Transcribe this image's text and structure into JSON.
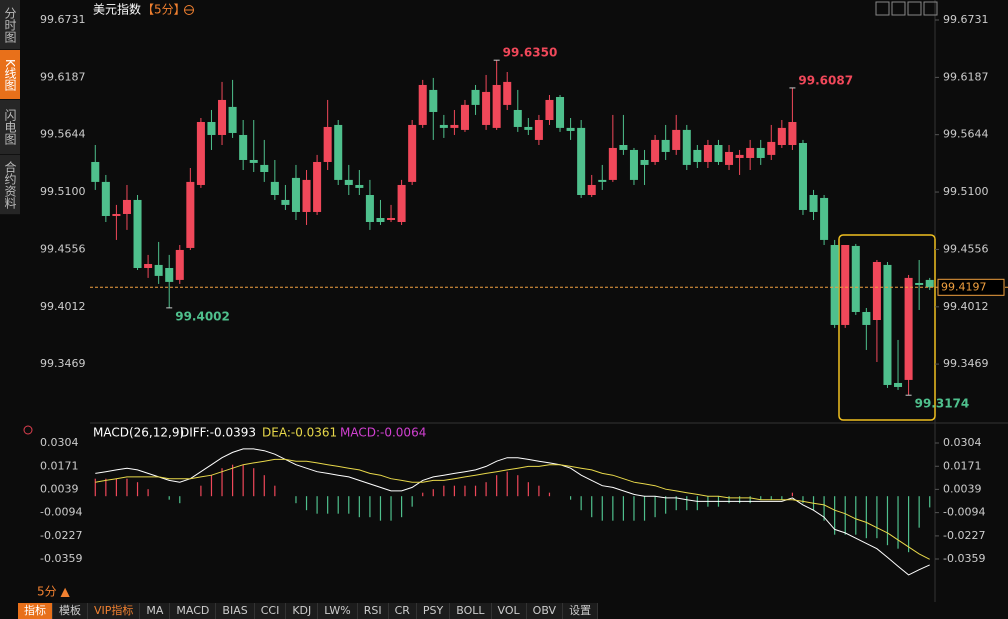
{
  "sidebar": [
    "分时图",
    "K线图",
    "闪电图",
    "合约资料"
  ],
  "toolbar": {
    "period": "5分 ▲",
    "tabs": [
      "指标",
      "模板",
      "VIP指标",
      "MA",
      "MACD",
      "BIAS",
      "CCI",
      "KDJ",
      "LW%",
      "RSI",
      "CR",
      "PSY",
      "BOLL",
      "VOL",
      "OBV",
      "设置"
    ]
  },
  "chart_data": [
    {
      "type": "candlestick",
      "title": "美元指数",
      "period": "【5分】",
      "up_color": "#f0485a",
      "down_color": "#4fc08d",
      "ylim": [
        99.2939,
        99.6731
      ],
      "yticks": [
        99.6731,
        99.6187,
        99.5644,
        {
          "value": 99.51,
          "label": "99.5100"
        },
        99.4556,
        99.4012,
        99.3469
      ],
      "current_price": 99.4197,
      "current_color": "#f0a040",
      "annotations": [
        {
          "value": 99.635,
          "label": "99.6350"
        },
        {
          "value": 99.6087
        },
        {
          "value": 99.4002
        },
        {
          "value": 99.3174
        }
      ],
      "open": [
        99.5385,
        99.5196,
        99.4873,
        99.4892,
        99.5025,
        99.438,
        99.4409,
        99.438,
        99.4267,
        99.457,
        99.5167,
        99.5764,
        99.5641,
        99.5907,
        99.5641,
        99.5404,
        99.5357,
        99.5196,
        99.5025,
        99.5234,
        99.4911,
        99.4911,
        99.5385,
        99.5736,
        99.5215,
        99.5167,
        99.5072,
        99.4854,
        99.4835,
        99.4816,
        99.5196,
        99.5736,
        99.6068,
        99.5736,
        99.5708,
        99.5689,
        99.6068,
        99.5736,
        99.5708,
        99.5926,
        99.5878,
        99.5717,
        99.5594,
        99.5783,
        99.6001,
        99.5708,
        99.5708,
        99.5072,
        99.5215,
        99.5215,
        99.5546,
        99.5499,
        99.5404,
        99.5385,
        99.5594,
        99.5499,
        99.5689,
        99.5499,
        99.5385,
        99.5546,
        99.5357,
        99.5423,
        99.5423,
        99.5518,
        99.5452,
        99.5546,
        99.5546,
        99.5565,
        99.5072,
        99.5044,
        99.4598,
        99.384,
        99.4589,
        99.3963,
        99.3887,
        99.4409,
        99.329,
        99.3319,
        99.4238,
        99.4267
      ],
      "high": [
        99.5546,
        99.5262,
        99.4978,
        99.5167,
        99.5072,
        99.4504,
        99.4627,
        99.4504,
        99.4598,
        99.5328,
        99.5802,
        99.5878,
        99.6144,
        99.6163,
        99.5783,
        99.5783,
        99.5594,
        99.5404,
        99.5167,
        99.5357,
        99.5309,
        99.5452,
        99.5973,
        99.5783,
        99.5357,
        99.5309,
        99.5215,
        99.5025,
        99.4978,
        99.5215,
        99.5783,
        99.6163,
        99.6182,
        99.5831,
        99.5878,
        99.5973,
        99.6115,
        99.621,
        99.635,
        99.6238,
        99.6068,
        99.5802,
        99.5831,
        99.602,
        99.602,
        99.5802,
        99.5783,
        99.5262,
        99.5357,
        99.5831,
        99.5831,
        99.5518,
        99.5499,
        99.5641,
        99.5736,
        99.5831,
        99.5736,
        99.5546,
        99.5594,
        99.5594,
        99.5546,
        99.5499,
        99.5594,
        99.5594,
        99.5736,
        99.5783,
        99.6087,
        99.5594,
        99.512,
        99.5072,
        99.4646,
        99.4598,
        99.4608,
        99.4001,
        99.4456,
        99.4437,
        99.3698,
        99.4314,
        99.4456,
        99.4286
      ],
      "low": [
        99.512,
        99.4816,
        99.4646,
        99.4741,
        99.4361,
        99.4286,
        99.4229,
        99.4002,
        99.4229,
        99.4551,
        99.5139,
        99.5499,
        99.5546,
        99.5613,
        99.5309,
        99.529,
        99.5196,
        99.5025,
        99.493,
        99.4835,
        99.4788,
        99.4883,
        99.5309,
        99.5167,
        99.5072,
        99.5072,
        99.4741,
        99.4788,
        99.4816,
        99.4788,
        99.5167,
        99.5708,
        99.5594,
        99.5613,
        99.5641,
        99.567,
        99.5831,
        99.5689,
        99.5689,
        99.5878,
        99.567,
        99.5641,
        99.5546,
        99.5736,
        99.567,
        99.5594,
        99.5044,
        99.5053,
        99.512,
        99.5196,
        99.5452,
        99.5167,
        99.5167,
        99.5357,
        99.5404,
        99.5452,
        99.5309,
        99.5328,
        99.5328,
        99.5357,
        99.5309,
        99.5262,
        99.5309,
        99.5357,
        99.5404,
        99.5518,
        99.5499,
        99.4883,
        99.4835,
        99.4598,
        99.3812,
        99.3812,
        99.3935,
        99.3603,
        99.3489,
        99.3243,
        99.3224,
        99.3174,
        99.3982,
        99.4172
      ],
      "close": [
        99.5196,
        99.4873,
        99.4892,
        99.5025,
        99.438,
        99.4418,
        99.4305,
        99.4248,
        99.4551,
        99.5196,
        99.5764,
        99.5641,
        99.5973,
        99.566,
        99.5404,
        99.5376,
        99.529,
        99.5072,
        99.4978,
        99.4911,
        99.5215,
        99.5385,
        99.5717,
        99.5215,
        99.5167,
        99.5139,
        99.4816,
        99.4816,
        99.4854,
        99.5167,
        99.5736,
        99.6115,
        99.5859,
        99.5708,
        99.5736,
        99.5926,
        99.5926,
        99.6049,
        99.6115,
        99.6144,
        99.5717,
        99.5689,
        99.5783,
        99.5973,
        99.5708,
        99.5679,
        99.5072,
        99.5167,
        99.5196,
        99.5518,
        99.5499,
        99.5215,
        99.5357,
        99.5594,
        99.548,
        99.5689,
        99.5357,
        99.5385,
        99.5546,
        99.5385,
        99.548,
        99.5452,
        99.5518,
        99.5423,
        99.5575,
        99.5708,
        99.5764,
        99.493,
        99.4911,
        99.4646,
        99.384,
        99.4598,
        99.3963,
        99.384,
        99.4437,
        99.3271,
        99.3252,
        99.4286,
        99.4219,
        99.4197
      ]
    },
    {
      "type": "macd",
      "title": "MACD(26,12,9)",
      "ylim": [
        -0.0359,
        0.0304
      ],
      "yticks": [
        0.0304,
        0.0171,
        0.0039,
        -0.0094,
        -0.0227,
        -0.0359
      ],
      "bar_up_color": "#f0485a",
      "bar_down_color": "#4fc08d",
      "series": [
        {
          "name": "DIFF:-0.0393",
          "color": "#ffffff",
          "values": [
            0.013,
            0.014,
            0.015,
            0.016,
            0.015,
            0.013,
            0.011,
            0.009,
            0.008,
            0.01,
            0.014,
            0.018,
            0.022,
            0.025,
            0.027,
            0.027,
            0.026,
            0.024,
            0.021,
            0.018,
            0.016,
            0.014,
            0.013,
            0.012,
            0.011,
            0.009,
            0.007,
            0.005,
            0.003,
            0.003,
            0.005,
            0.009,
            0.011,
            0.012,
            0.013,
            0.014,
            0.015,
            0.017,
            0.02,
            0.022,
            0.022,
            0.021,
            0.02,
            0.019,
            0.018,
            0.016,
            0.012,
            0.009,
            0.006,
            0.005,
            0.003,
            0.001,
            0.0,
            0.0,
            -0.001,
            -0.001,
            -0.002,
            -0.003,
            -0.003,
            -0.003,
            -0.003,
            -0.003,
            -0.003,
            -0.003,
            -0.003,
            -0.003,
            -0.001,
            -0.005,
            -0.008,
            -0.012,
            -0.019,
            -0.021,
            -0.024,
            -0.027,
            -0.03,
            -0.035,
            -0.04,
            -0.045,
            -0.042,
            -0.0393
          ]
        },
        {
          "name": "DEA:-0.0361",
          "color": "#e8d84a",
          "values": [
            0.008,
            0.009,
            0.01,
            0.011,
            0.011,
            0.011,
            0.011,
            0.01,
            0.01,
            0.01,
            0.011,
            0.012,
            0.014,
            0.016,
            0.018,
            0.019,
            0.02,
            0.021,
            0.021,
            0.02,
            0.02,
            0.019,
            0.018,
            0.017,
            0.016,
            0.015,
            0.013,
            0.012,
            0.01,
            0.009,
            0.008,
            0.008,
            0.009,
            0.009,
            0.01,
            0.011,
            0.012,
            0.013,
            0.014,
            0.015,
            0.016,
            0.017,
            0.017,
            0.018,
            0.018,
            0.017,
            0.016,
            0.015,
            0.013,
            0.012,
            0.01,
            0.008,
            0.007,
            0.006,
            0.004,
            0.003,
            0.002,
            0.001,
            0.0,
            0.0,
            -0.001,
            -0.001,
            -0.001,
            -0.002,
            -0.002,
            -0.002,
            -0.002,
            -0.003,
            -0.004,
            -0.005,
            -0.008,
            -0.01,
            -0.013,
            -0.015,
            -0.018,
            -0.021,
            -0.025,
            -0.029,
            -0.033,
            -0.0361
          ]
        },
        {
          "name": "MACD:-0.0064",
          "color": "#d040d0",
          "values": [
            0.01,
            0.01,
            0.01,
            0.01,
            0.008,
            0.004,
            0.0,
            -0.002,
            -0.004,
            0.0,
            0.006,
            0.012,
            0.016,
            0.018,
            0.018,
            0.016,
            0.012,
            0.006,
            0.0,
            -0.004,
            -0.008,
            -0.01,
            -0.01,
            -0.01,
            -0.01,
            -0.012,
            -0.012,
            -0.014,
            -0.014,
            -0.012,
            -0.006,
            0.002,
            0.004,
            0.006,
            0.006,
            0.006,
            0.006,
            0.008,
            0.012,
            0.014,
            0.012,
            0.008,
            0.006,
            0.002,
            0.0,
            -0.002,
            -0.008,
            -0.012,
            -0.014,
            -0.014,
            -0.014,
            -0.014,
            -0.014,
            -0.012,
            -0.01,
            -0.008,
            -0.008,
            -0.008,
            -0.006,
            -0.006,
            -0.004,
            -0.004,
            -0.004,
            -0.002,
            -0.002,
            -0.002,
            0.002,
            -0.004,
            -0.008,
            -0.014,
            -0.022,
            -0.022,
            -0.022,
            -0.024,
            -0.024,
            -0.028,
            -0.03,
            -0.032,
            -0.018,
            -0.0064
          ]
        }
      ]
    }
  ]
}
